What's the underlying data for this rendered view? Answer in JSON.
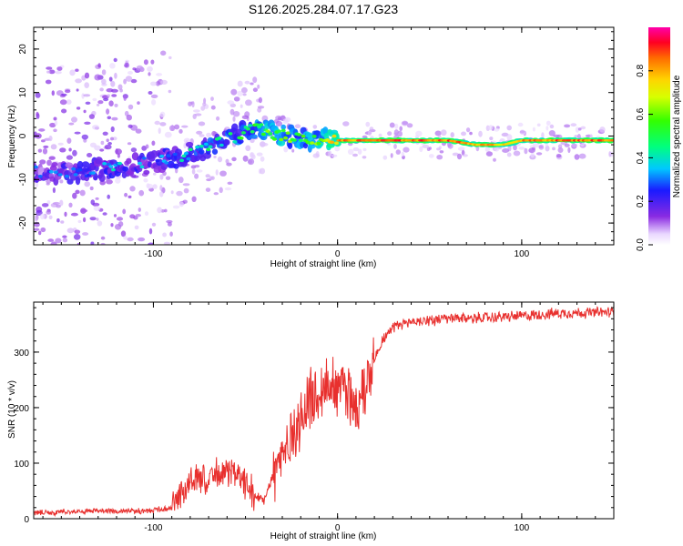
{
  "chart_data": [
    {
      "type": "heatmap",
      "title": "S126.2025.284.07.17.G23",
      "xlabel": "Height of straight line (km)",
      "ylabel": "Frequency (Hz)",
      "xlim": [
        -165,
        150
      ],
      "ylim": [
        -25,
        25
      ],
      "xticks": [
        -100,
        0,
        100
      ],
      "yticks": [
        -20,
        -10,
        0,
        10,
        20
      ],
      "colorbar": {
        "label": "Normalized spectral amplitude",
        "range": [
          0,
          1
        ],
        "ticks": [
          "0.0",
          "0.2",
          "0.4",
          "0.6",
          "0.8"
        ],
        "tick_values": [
          0.0,
          0.2,
          0.4,
          0.6,
          0.8
        ]
      },
      "ridge": {
        "description_x_km": [
          -165,
          -140,
          -120,
          -100,
          -80,
          -60,
          -45,
          -35,
          -20,
          -10,
          0,
          20,
          60,
          75,
          90,
          100,
          120,
          150
        ],
        "freq_hz": [
          -8,
          -8.5,
          -7,
          -6,
          -4,
          -1,
          2,
          0.5,
          -0.5,
          -0.8,
          -1,
          -1,
          -1,
          -2,
          -2,
          -1,
          -1,
          -1
        ],
        "amplitude": [
          0.25,
          0.3,
          0.35,
          0.3,
          0.4,
          0.45,
          0.5,
          0.6,
          0.55,
          0.6,
          0.8,
          0.85,
          0.85,
          0.8,
          0.75,
          0.8,
          0.85,
          0.85
        ]
      }
    },
    {
      "type": "line",
      "xlabel": "Height of straight line (km)",
      "ylabel": "SNR (10 * v/v)",
      "xlim": [
        -165,
        150
      ],
      "ylim": [
        0,
        390
      ],
      "xticks": [
        -100,
        0,
        100
      ],
      "yticks": [
        0,
        100,
        200,
        300
      ],
      "color": "#e8302e",
      "series": [
        {
          "name": "SNR",
          "x": [
            -165,
            -150,
            -130,
            -110,
            -100,
            -90,
            -85,
            -80,
            -70,
            -60,
            -50,
            -45,
            -40,
            -35,
            -30,
            -25,
            -20,
            -15,
            -10,
            -5,
            0,
            5,
            10,
            15,
            20,
            25,
            30,
            40,
            60,
            80,
            100,
            120,
            150
          ],
          "y": [
            10,
            12,
            14,
            14,
            15,
            20,
            45,
            65,
            70,
            90,
            60,
            40,
            35,
            80,
            110,
            150,
            180,
            210,
            230,
            240,
            245,
            230,
            200,
            240,
            290,
            325,
            345,
            355,
            360,
            362,
            365,
            370,
            372
          ]
        }
      ]
    }
  ]
}
